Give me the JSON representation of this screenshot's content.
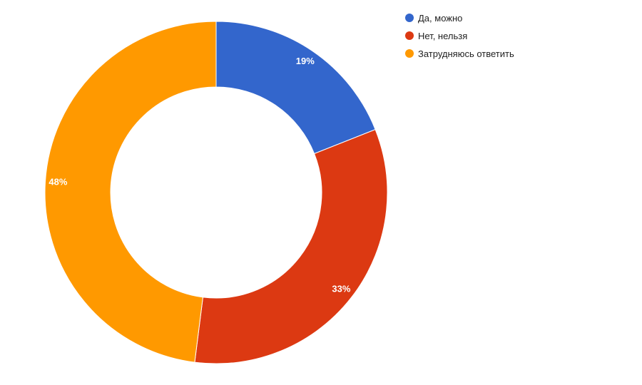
{
  "chart_data": {
    "type": "pie",
    "donut": true,
    "title": "",
    "legend_position": "top-right",
    "slices": [
      {
        "label": "Да, можно",
        "value": 19,
        "display": "19%",
        "color": "#3366cc"
      },
      {
        "label": "Нет, нельзя",
        "value": 33,
        "display": "33%",
        "color": "#dc3912"
      },
      {
        "label": "Затрудняюсь ответить",
        "value": 48,
        "display": "48%",
        "color": "#ff9900"
      }
    ]
  }
}
